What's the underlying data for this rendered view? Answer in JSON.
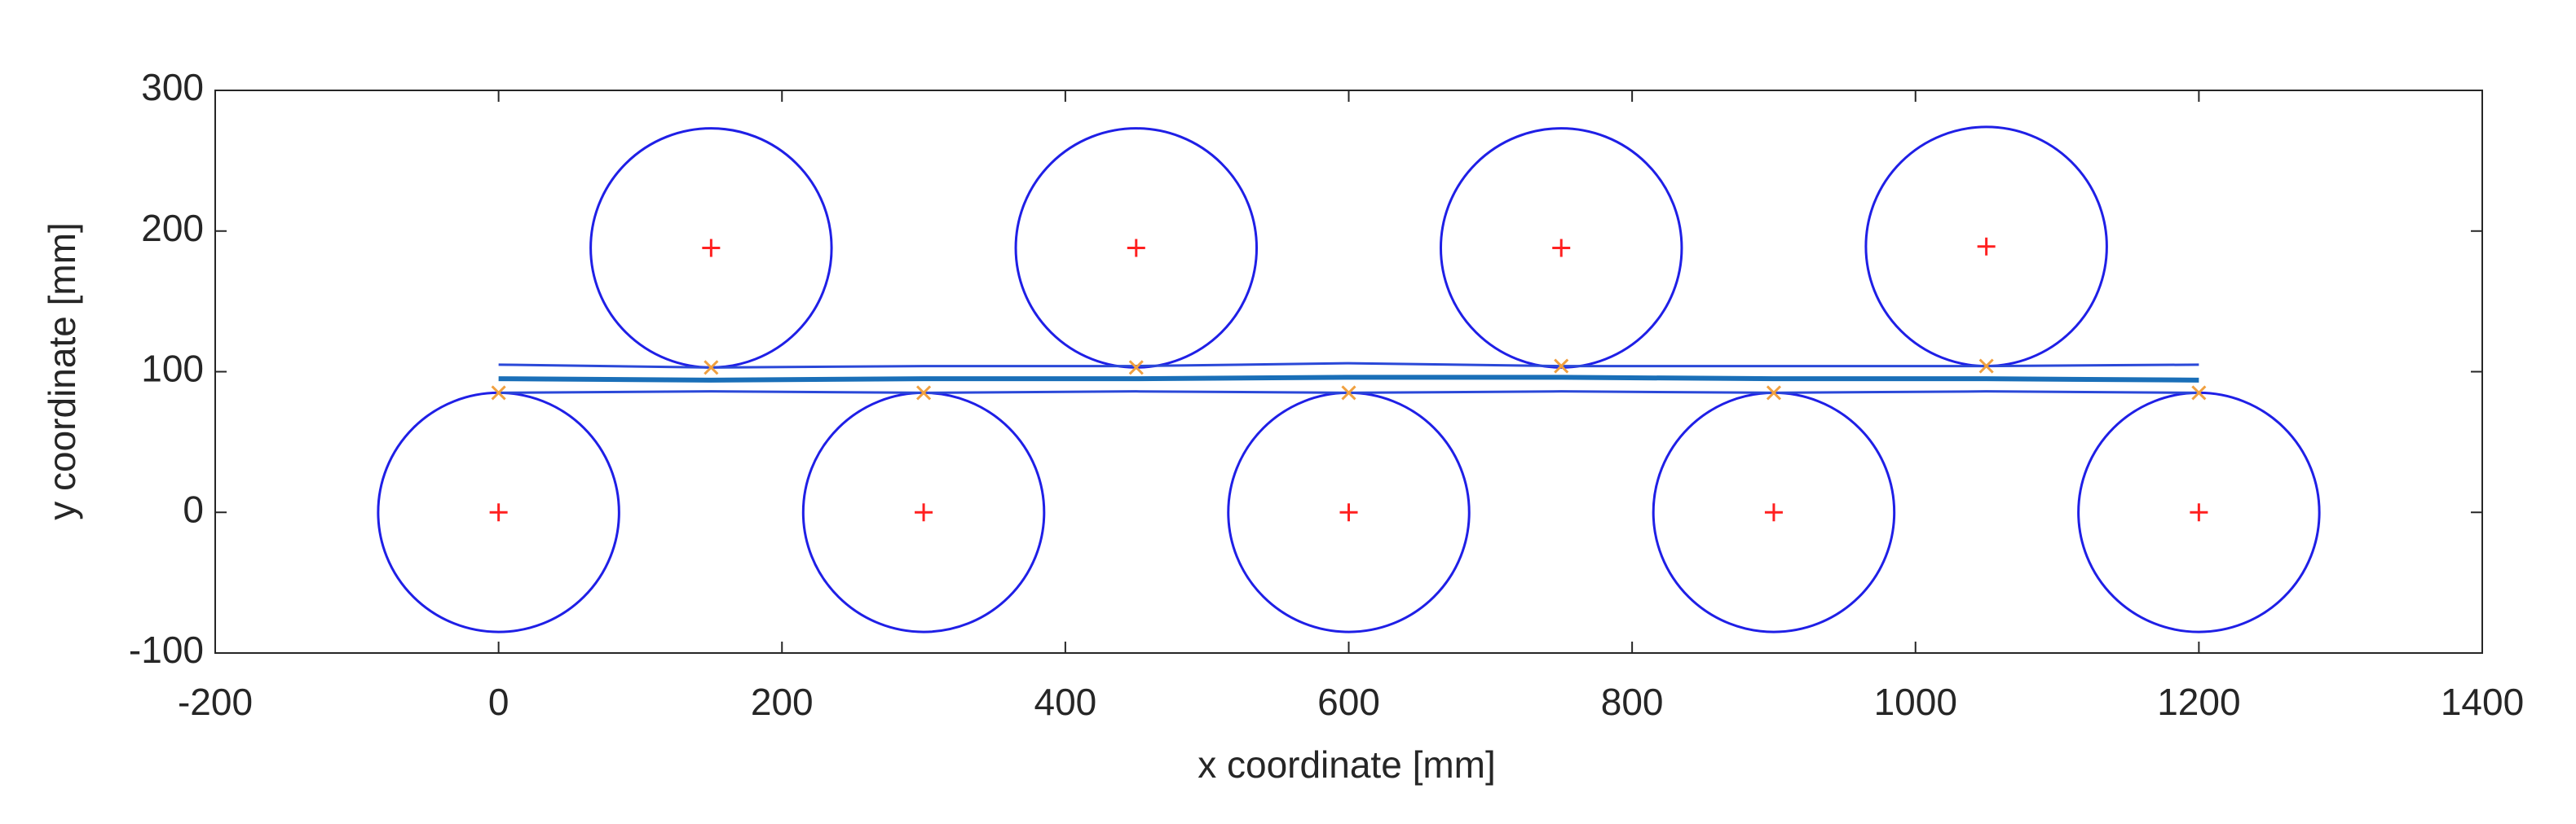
{
  "chart_data": {
    "type": "scatter",
    "xlabel": "x coordinate [mm]",
    "ylabel": "y coordinate [mm]",
    "xlim": [
      -200,
      1400
    ],
    "ylim": [
      -100,
      300
    ],
    "xticks": [
      -200,
      0,
      200,
      400,
      600,
      800,
      1000,
      1200,
      1400
    ],
    "yticks": [
      -100,
      0,
      100,
      200,
      300
    ],
    "grid": false,
    "rollers": {
      "color": "#1f1fe6",
      "center_color": "#ff2020",
      "x": [
        0,
        300,
        600,
        900,
        1200,
        150,
        450,
        750,
        1050
      ],
      "y": [
        0,
        0,
        0,
        0,
        0,
        188,
        188,
        188,
        189
      ],
      "r": [
        85,
        85,
        85,
        85,
        85,
        85,
        85,
        85,
        85
      ]
    },
    "contacts": {
      "color": "#f0a040",
      "x": [
        0,
        300,
        600,
        900,
        1200,
        150,
        450,
        750,
        1050
      ],
      "y": [
        85,
        85,
        85,
        85,
        85,
        103,
        103,
        104,
        104
      ]
    },
    "series": [
      {
        "color": "#2a48d8",
        "width": 3,
        "x": [
          0,
          150,
          300,
          450,
          600,
          750,
          900,
          1050,
          1200
        ],
        "values": [
          105,
          103,
          104,
          104,
          106,
          104,
          104,
          104,
          105
        ]
      },
      {
        "color": "#1a6fb8",
        "width": 6,
        "x": [
          0,
          150,
          300,
          450,
          600,
          750,
          900,
          1050,
          1200
        ],
        "values": [
          95,
          94,
          95,
          95,
          96,
          96,
          95,
          95,
          94
        ]
      },
      {
        "color": "#2a48d8",
        "width": 3,
        "x": [
          0,
          150,
          300,
          450,
          600,
          750,
          900,
          1050,
          1200
        ],
        "values": [
          85,
          86,
          85,
          86,
          85,
          86,
          85,
          86,
          85
        ]
      }
    ]
  }
}
